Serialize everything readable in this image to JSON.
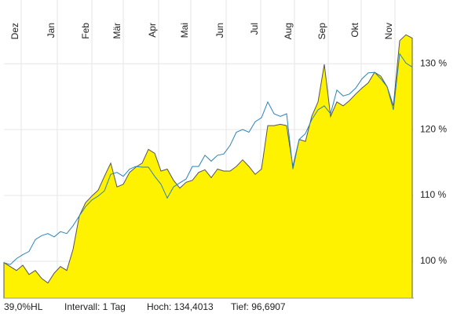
{
  "chart_data": {
    "type": "line",
    "x": [
      0,
      4,
      8,
      12,
      16,
      20,
      24,
      28,
      32,
      36,
      40,
      44,
      48,
      52,
      56,
      60,
      64,
      68,
      72,
      76,
      80,
      84,
      88,
      92,
      96,
      100,
      104,
      108,
      112,
      116,
      120,
      124,
      128,
      132,
      136,
      140,
      144,
      148,
      152,
      156,
      160,
      164,
      168,
      172,
      176,
      180,
      184,
      188,
      192,
      196,
      200,
      204,
      208,
      212,
      216,
      220,
      224,
      228,
      232,
      236,
      240,
      244,
      248,
      252,
      256,
      260
    ],
    "series": [
      {
        "color": "#fff200",
        "fill": true,
        "values": [
          99.8,
          99.2,
          98.6,
          99.4,
          98.0,
          98.6,
          97.4,
          96.7,
          98.2,
          99.2,
          98.6,
          101.8,
          106.9,
          108.9,
          109.9,
          110.8,
          112.9,
          114.9,
          111.3,
          111.7,
          113.5,
          114.3,
          114.9,
          117.0,
          116.4,
          113.7,
          114.0,
          112.3,
          111.1,
          112.0,
          112.3,
          113.5,
          113.9,
          112.7,
          114.0,
          113.7,
          113.7,
          114.4,
          115.4,
          114.4,
          113.2,
          114.0,
          120.6,
          120.6,
          120.8,
          120.6,
          114.4,
          118.5,
          118.2,
          122.0,
          124.2,
          129.9,
          122.0,
          124.2,
          123.6,
          124.4,
          125.4,
          126.3,
          127.1,
          128.7,
          128.1,
          126.5,
          123.6,
          133.5,
          134.4,
          133.9
        ]
      },
      {
        "color": "#2b83ba",
        "fill": false,
        "values": [
          99.8,
          99.5,
          100.4,
          101.0,
          101.5,
          103.3,
          103.9,
          104.2,
          103.7,
          104.5,
          104.2,
          105.4,
          106.9,
          108.3,
          109.3,
          109.9,
          110.7,
          113.2,
          113.5,
          112.9,
          114.0,
          114.4,
          114.3,
          114.3,
          112.9,
          111.7,
          109.6,
          111.3,
          111.9,
          112.5,
          114.4,
          114.4,
          116.1,
          115.2,
          116.1,
          116.3,
          117.6,
          119.6,
          120.0,
          119.6,
          121.2,
          121.8,
          124.2,
          122.4,
          122.0,
          122.4,
          114.0,
          118.5,
          119.4,
          121.5,
          123.0,
          123.6,
          122.4,
          126.0,
          125.1,
          125.4,
          126.3,
          127.7,
          128.6,
          128.7,
          127.7,
          126.5,
          123.0,
          131.5,
          130.1,
          129.5
        ]
      }
    ],
    "xlim": [
      0,
      261
    ],
    "xticks": [
      {
        "value": 11,
        "label": "Dez"
      },
      {
        "value": 34,
        "label": "Jan"
      },
      {
        "value": 56,
        "label": "Feb"
      },
      {
        "value": 76,
        "label": "Mär"
      },
      {
        "value": 98.5,
        "label": "Apr"
      },
      {
        "value": 119,
        "label": "Mai"
      },
      {
        "value": 141.5,
        "label": "Jun"
      },
      {
        "value": 163.5,
        "label": "Jul"
      },
      {
        "value": 185,
        "label": "Aug"
      },
      {
        "value": 206.5,
        "label": "Sep"
      },
      {
        "value": 227.5,
        "label": "Okt"
      },
      {
        "value": 249,
        "label": "Nov"
      }
    ],
    "ylim": [
      94.4,
      136.1
    ],
    "yticks": [
      {
        "value": 100,
        "label": "100 %"
      },
      {
        "value": 110,
        "label": "110 %"
      },
      {
        "value": 120,
        "label": "120 %"
      },
      {
        "value": 130,
        "label": "130 %"
      }
    ],
    "grid": true,
    "footer": [
      "39,0%HL",
      "Intervall: 1 Tag",
      "Hoch: 134,4013",
      "Tief: 96,6907"
    ]
  }
}
